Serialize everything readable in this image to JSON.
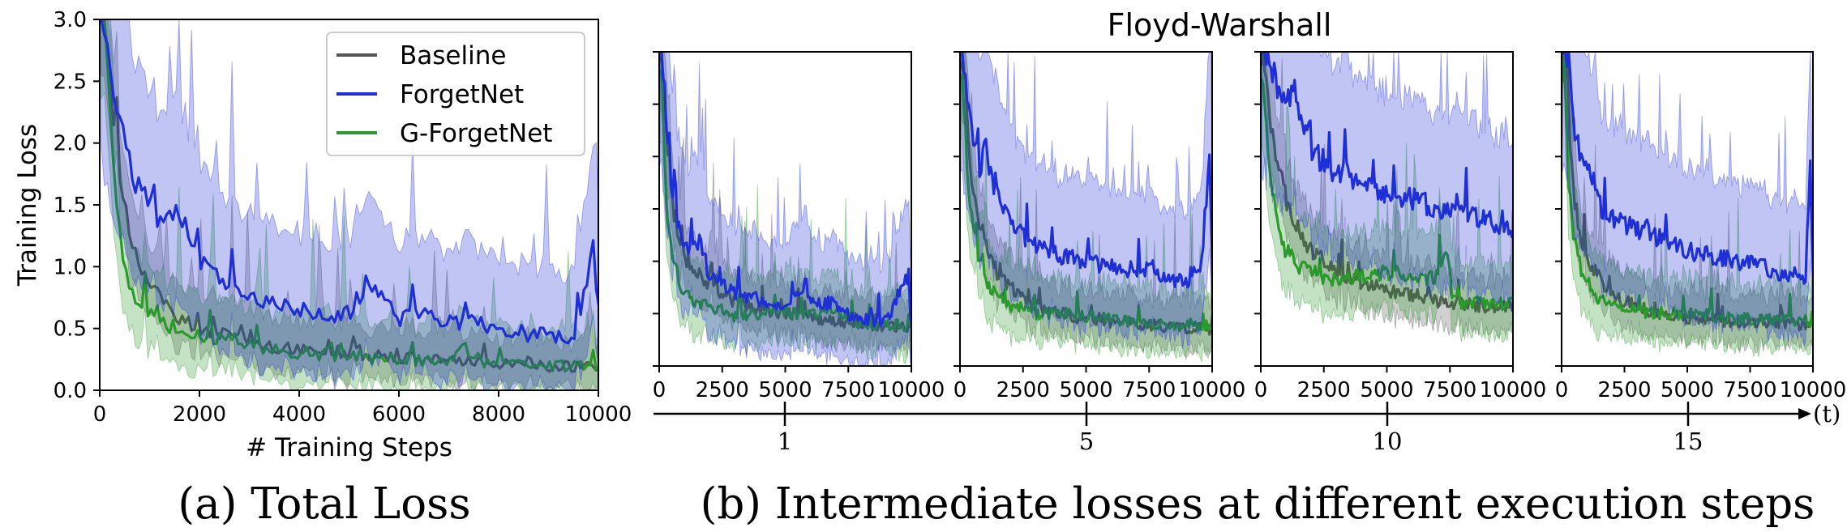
{
  "figure": {
    "caption_a": "(a) Total Loss",
    "caption_b": "(b) Intermediate losses at different execution steps",
    "group_title": "Floyd-Warshall",
    "timeline_label": "(t)",
    "timeline_ticks": [
      "1",
      "5",
      "10",
      "15"
    ]
  },
  "colors": {
    "Baseline": "#555555",
    "ForgetNet": "#1f2fd6",
    "G-ForgetNet": "#2a9a2a"
  },
  "chart_data": [
    {
      "type": "line",
      "id": "total",
      "title": "",
      "xlabel": "# Training Steps",
      "ylabel": "Training Loss",
      "xlim": [
        0,
        10000
      ],
      "ylim": [
        0,
        3.0
      ],
      "xticks": [
        "0",
        "2000",
        "4000",
        "6000",
        "8000",
        "10000"
      ],
      "yticks": [
        "0.0",
        "0.5",
        "1.0",
        "1.5",
        "2.0",
        "2.5",
        "3.0"
      ],
      "legend": {
        "position": "top-right",
        "entries": [
          "Baseline",
          "ForgetNet",
          "G-ForgetNet"
        ]
      },
      "series": [
        {
          "name": "Baseline",
          "x": [
            100,
            300,
            500,
            700,
            1000,
            1500,
            2000,
            3000,
            4000,
            5000,
            6000,
            7000,
            8000,
            9000,
            10000
          ],
          "values": [
            3.0,
            2.0,
            1.45,
            1.1,
            0.85,
            0.62,
            0.5,
            0.4,
            0.32,
            0.3,
            0.27,
            0.24,
            0.22,
            0.2,
            0.18
          ]
        },
        {
          "name": "ForgetNet",
          "x": [
            100,
            300,
            500,
            700,
            1000,
            1300,
            1500,
            1700,
            2000,
            2500,
            3000,
            3500,
            4000,
            4500,
            5000,
            5400,
            6000,
            6500,
            7000,
            7500,
            8000,
            8500,
            9000,
            9500,
            9900,
            10000
          ],
          "values": [
            3.0,
            2.4,
            2.0,
            1.7,
            1.5,
            1.3,
            1.5,
            1.35,
            1.05,
            0.85,
            0.75,
            0.7,
            0.65,
            0.6,
            0.62,
            0.9,
            0.58,
            0.6,
            0.55,
            0.55,
            0.5,
            0.45,
            0.45,
            0.4,
            1.15,
            0.65
          ]
        },
        {
          "name": "G-ForgetNet",
          "x": [
            100,
            300,
            500,
            700,
            1000,
            1500,
            2000,
            3000,
            4000,
            5000,
            6000,
            7000,
            7300,
            7500,
            8000,
            9000,
            10000
          ],
          "values": [
            3.0,
            1.7,
            1.0,
            0.75,
            0.6,
            0.5,
            0.45,
            0.35,
            0.3,
            0.28,
            0.25,
            0.22,
            0.38,
            0.24,
            0.22,
            0.2,
            0.2
          ]
        }
      ]
    },
    {
      "type": "line",
      "id": "step1",
      "xlim": [
        0,
        10000
      ],
      "ylim": [
        0,
        3.0
      ],
      "xticks": [
        "0",
        "2500",
        "5000",
        "7500",
        "10000"
      ],
      "series": [
        {
          "name": "Baseline",
          "x": [
            100,
            300,
            500,
            800,
            1200,
            1600,
            2000,
            2500,
            3000,
            4000,
            5000,
            6000,
            7000,
            8000,
            9000,
            10000
          ],
          "values": [
            3.0,
            2.2,
            1.6,
            1.2,
            0.95,
            0.85,
            0.75,
            0.68,
            0.62,
            0.55,
            0.5,
            0.47,
            0.43,
            0.4,
            0.38,
            0.36
          ]
        },
        {
          "name": "ForgetNet",
          "x": [
            100,
            300,
            500,
            800,
            1200,
            1600,
            2000,
            2500,
            3000,
            4000,
            5000,
            5800,
            6000,
            7000,
            7500,
            8000,
            9000,
            9800,
            10000
          ],
          "values": [
            3.0,
            2.3,
            1.7,
            1.3,
            1.05,
            1.2,
            0.85,
            0.8,
            0.7,
            0.62,
            0.55,
            0.8,
            0.6,
            0.6,
            0.5,
            0.45,
            0.42,
            0.85,
            0.45
          ]
        },
        {
          "name": "G-ForgetNet",
          "x": [
            100,
            300,
            500,
            800,
            1200,
            1600,
            2000,
            2500,
            3000,
            4000,
            5000,
            6000,
            7000,
            7500,
            8000,
            9000,
            10000
          ],
          "values": [
            2.8,
            1.5,
            1.05,
            0.8,
            0.65,
            0.6,
            0.55,
            0.5,
            0.48,
            0.5,
            0.52,
            0.48,
            0.55,
            0.45,
            0.42,
            0.4,
            0.38
          ]
        }
      ]
    },
    {
      "type": "line",
      "id": "step5",
      "xlim": [
        0,
        10000
      ],
      "ylim": [
        0,
        3.0
      ],
      "xticks": [
        "0",
        "2500",
        "5000",
        "7500",
        "10000"
      ],
      "series": [
        {
          "name": "Baseline",
          "x": [
            100,
            300,
            500,
            800,
            1200,
            1600,
            2000,
            2500,
            3000,
            4000,
            5000,
            6000,
            7000,
            8000,
            9000,
            10000
          ],
          "values": [
            3.0,
            2.3,
            1.7,
            1.3,
            1.0,
            0.85,
            0.75,
            0.65,
            0.58,
            0.5,
            0.45,
            0.42,
            0.4,
            0.38,
            0.36,
            0.35
          ]
        },
        {
          "name": "ForgetNet",
          "x": [
            100,
            300,
            500,
            800,
            1000,
            1300,
            1600,
            2000,
            2500,
            3000,
            3500,
            4000,
            5000,
            6000,
            7000,
            7500,
            8000,
            9000,
            9600,
            9900,
            10000
          ],
          "values": [
            3.0,
            2.6,
            2.2,
            1.9,
            2.2,
            1.7,
            1.6,
            1.4,
            1.25,
            1.15,
            1.1,
            1.05,
            1.0,
            0.95,
            0.9,
            0.95,
            0.85,
            0.8,
            1.0,
            2.1,
            0.75
          ]
        },
        {
          "name": "G-ForgetNet",
          "x": [
            100,
            300,
            500,
            800,
            1200,
            1600,
            2000,
            2500,
            3000,
            4000,
            5000,
            6000,
            7000,
            8000,
            9000,
            10000
          ],
          "values": [
            2.8,
            1.8,
            1.3,
            0.95,
            0.75,
            0.65,
            0.58,
            0.55,
            0.5,
            0.5,
            0.48,
            0.45,
            0.42,
            0.4,
            0.38,
            0.38
          ]
        }
      ]
    },
    {
      "type": "line",
      "id": "step10",
      "xlim": [
        0,
        10000
      ],
      "ylim": [
        0,
        3.0
      ],
      "xticks": [
        "0",
        "2500",
        "5000",
        "7500",
        "10000"
      ],
      "series": [
        {
          "name": "Baseline",
          "x": [
            100,
            300,
            600,
            1000,
            1500,
            2000,
            2500,
            3000,
            4000,
            5000,
            6000,
            7000,
            8000,
            9000,
            10000
          ],
          "values": [
            3.0,
            2.5,
            2.0,
            1.6,
            1.3,
            1.1,
            1.0,
            0.9,
            0.8,
            0.72,
            0.68,
            0.62,
            0.6,
            0.57,
            0.55
          ]
        },
        {
          "name": "ForgetNet",
          "x": [
            100,
            300,
            600,
            1000,
            1300,
            1600,
            2000,
            2500,
            3000,
            3500,
            4000,
            5000,
            6000,
            7000,
            8000,
            9000,
            9700,
            10000
          ],
          "values": [
            3.0,
            3.0,
            2.7,
            2.4,
            2.8,
            2.3,
            2.1,
            1.9,
            1.8,
            1.85,
            1.7,
            1.65,
            1.6,
            1.5,
            1.45,
            1.4,
            1.3,
            1.25
          ]
        },
        {
          "name": "G-ForgetNet",
          "x": [
            100,
            300,
            600,
            1000,
            1500,
            2000,
            2500,
            3000,
            4000,
            5000,
            6000,
            7000,
            7400,
            7600,
            8000,
            9000,
            10000
          ],
          "values": [
            2.8,
            2.0,
            1.4,
            1.1,
            0.95,
            0.9,
            0.85,
            0.82,
            0.85,
            0.9,
            0.85,
            0.85,
            1.05,
            0.65,
            0.6,
            0.6,
            0.6
          ]
        }
      ]
    },
    {
      "type": "line",
      "id": "step15",
      "xlim": [
        0,
        10000
      ],
      "ylim": [
        0,
        3.0
      ],
      "xticks": [
        "0",
        "2500",
        "5000",
        "7500",
        "10000"
      ],
      "series": [
        {
          "name": "Baseline",
          "x": [
            100,
            300,
            500,
            800,
            1200,
            1600,
            2000,
            2500,
            3000,
            4000,
            5000,
            6000,
            7000,
            8000,
            9000,
            10000
          ],
          "values": [
            3.0,
            2.2,
            1.6,
            1.2,
            0.95,
            0.8,
            0.7,
            0.62,
            0.56,
            0.5,
            0.46,
            0.44,
            0.42,
            0.41,
            0.4,
            0.4
          ]
        },
        {
          "name": "ForgetNet",
          "x": [
            100,
            300,
            500,
            800,
            1200,
            1600,
            2000,
            2500,
            3000,
            4000,
            5000,
            6000,
            7000,
            8000,
            9000,
            9700,
            9900,
            10000
          ],
          "values": [
            3.0,
            2.8,
            2.3,
            2.0,
            1.8,
            1.5,
            1.4,
            1.35,
            1.3,
            1.2,
            1.1,
            1.05,
            1.0,
            0.95,
            0.85,
            0.8,
            2.05,
            0.75
          ]
        },
        {
          "name": "G-ForgetNet",
          "x": [
            100,
            300,
            500,
            800,
            1200,
            1600,
            2000,
            2500,
            3000,
            4000,
            5000,
            6000,
            7000,
            8000,
            9000,
            10000
          ],
          "values": [
            2.8,
            1.7,
            1.2,
            0.9,
            0.72,
            0.62,
            0.6,
            0.55,
            0.52,
            0.5,
            0.5,
            0.48,
            0.45,
            0.45,
            0.44,
            0.43
          ]
        }
      ]
    }
  ]
}
